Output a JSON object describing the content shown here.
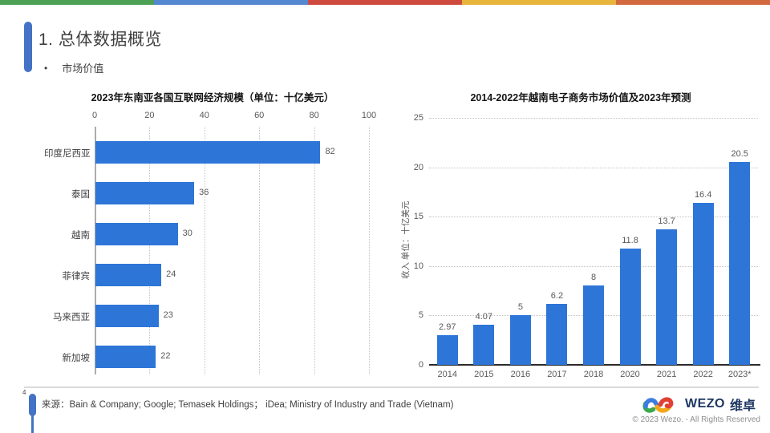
{
  "page": {
    "slide_number": "4",
    "title": "1. 总体数据概览",
    "bullet": "市场价值",
    "footer_source": "来源：Bain & Company; Google; Temasek Holdings； iDea; Ministry of Industry and Trade (Vietnam)",
    "copyright": "© 2023 Wezo. - All Rights Reserved",
    "logo_text_en": "WEZO",
    "logo_text_cn": "维卓"
  },
  "theme": {
    "stripe_colors": [
      "#4CA154",
      "#5488D0",
      "#CE4A3F",
      "#E7B43C",
      "#D2693F"
    ],
    "accent_blue": "#4472C4",
    "bar_blue": "#2E75D8",
    "label_gray": "#595959",
    "logo_navy": "#1F3864",
    "logo_mark_colors": {
      "blue": "#3D7DE0",
      "green": "#3DA94F",
      "red": "#E04034",
      "yellow": "#F2A71B"
    }
  },
  "chart_data": [
    {
      "type": "bar",
      "orientation": "horizontal",
      "title": "2023年东南亚各国互联网经济规模（单位：十亿美元）",
      "categories": [
        "印度尼西亚",
        "泰国",
        "越南",
        "菲律宾",
        "马来西亚",
        "新加坡"
      ],
      "values": [
        82,
        36,
        30,
        24,
        23,
        22
      ],
      "value_labels": [
        "82",
        "36",
        "30",
        "24",
        "23",
        "22"
      ],
      "xlim": [
        0,
        100
      ],
      "xticks": [
        "0",
        "20",
        "40",
        "60",
        "80",
        "100"
      ],
      "grid": "vertical-dotted",
      "legend": "none",
      "bar_color": "#2E75D8"
    },
    {
      "type": "bar",
      "orientation": "vertical",
      "title": "2014-2022年越南电子商务市场价值及2023年预测",
      "ylabel": "收入 单位：十亿美元",
      "categories": [
        "2014",
        "2015",
        "2016",
        "2017",
        "2018",
        "2020",
        "2021",
        "2022",
        "2023*"
      ],
      "values": [
        2.97,
        4.07,
        5,
        6.2,
        8,
        11.8,
        13.7,
        16.4,
        20.5
      ],
      "value_labels": [
        "2.97",
        "4.07",
        "5",
        "6.2",
        "8",
        "11.8",
        "13.7",
        "16.4",
        "20.5"
      ],
      "ylim": [
        0,
        25
      ],
      "yticks": [
        "0",
        "5",
        "10",
        "15",
        "20",
        "25"
      ],
      "grid": "horizontal-dotted",
      "legend": "none",
      "bar_color": "#2E75D8"
    }
  ]
}
